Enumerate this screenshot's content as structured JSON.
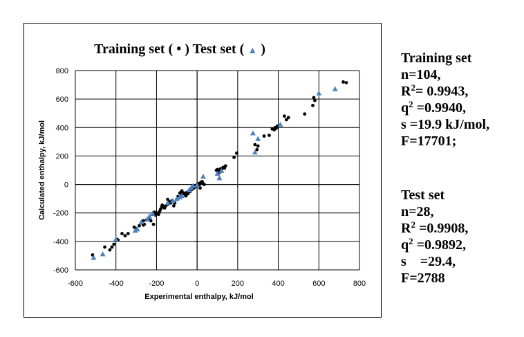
{
  "chart_data": {
    "type": "scatter",
    "title_parts": [
      "Training set ( ",
      "•",
      " )   Test set ( ",
      "▲",
      " )"
    ],
    "xlabel": "Experimental enthalpy,  kJ/mol",
    "ylabel": "Calculated enthalpy,  kJ/mol",
    "xlim": [
      -600,
      800
    ],
    "ylim": [
      -600,
      800
    ],
    "xticks": [
      -600,
      -400,
      -200,
      0,
      200,
      400,
      600,
      800
    ],
    "yticks": [
      -600,
      -400,
      -200,
      0,
      200,
      400,
      600,
      800
    ],
    "grid": true,
    "series": [
      {
        "name": "Training set",
        "marker": "dot",
        "color": "#000000",
        "points": [
          [
            -515,
            -495
          ],
          [
            -455,
            -440
          ],
          [
            -430,
            -460
          ],
          [
            -420,
            -440
          ],
          [
            -410,
            -420
          ],
          [
            -390,
            -390
          ],
          [
            -370,
            -345
          ],
          [
            -355,
            -360
          ],
          [
            -340,
            -345
          ],
          [
            -310,
            -300
          ],
          [
            -285,
            -290
          ],
          [
            -275,
            -270
          ],
          [
            -265,
            -255
          ],
          [
            -260,
            -280
          ],
          [
            -250,
            -250
          ],
          [
            -235,
            -230
          ],
          [
            -228,
            -255
          ],
          [
            -220,
            -210
          ],
          [
            -215,
            -280
          ],
          [
            -210,
            -195
          ],
          [
            -200,
            -200
          ],
          [
            -190,
            -210
          ],
          [
            -180,
            -175
          ],
          [
            -175,
            -160
          ],
          [
            -172,
            -145
          ],
          [
            -165,
            -160
          ],
          [
            -160,
            -165
          ],
          [
            -155,
            -150
          ],
          [
            -145,
            -140
          ],
          [
            -140,
            -120
          ],
          [
            -130,
            -130
          ],
          [
            -120,
            -120
          ],
          [
            -115,
            -150
          ],
          [
            -110,
            -130
          ],
          [
            -100,
            -105
          ],
          [
            -95,
            -85
          ],
          [
            -90,
            -90
          ],
          [
            -85,
            -60
          ],
          [
            -78,
            -80
          ],
          [
            -72,
            -65
          ],
          [
            -65,
            -60
          ],
          [
            -60,
            -70
          ],
          [
            -55,
            -80
          ],
          [
            -50,
            -55
          ],
          [
            -45,
            -65
          ],
          [
            -40,
            -45
          ],
          [
            -35,
            -50
          ],
          [
            -30,
            -30
          ],
          [
            -25,
            -35
          ],
          [
            -20,
            -20
          ],
          [
            -15,
            -25
          ],
          [
            -10,
            -10
          ],
          [
            -5,
            -15
          ],
          [
            0,
            0
          ],
          [
            5,
            5
          ],
          [
            10,
            -5
          ],
          [
            15,
            10
          ],
          [
            20,
            15
          ],
          [
            25,
            20
          ],
          [
            30,
            5
          ],
          [
            35,
            0
          ],
          [
            -75,
            -45
          ],
          [
            -125,
            -115
          ],
          [
            -145,
            -105
          ],
          [
            95,
            100
          ],
          [
            100,
            105
          ],
          [
            105,
            95
          ],
          [
            110,
            85
          ],
          [
            115,
            110
          ],
          [
            120,
            105
          ],
          [
            128,
            120
          ],
          [
            135,
            115
          ],
          [
            140,
            130
          ],
          [
            182,
            190
          ],
          [
            195,
            220
          ],
          [
            285,
            280
          ],
          [
            295,
            245
          ],
          [
            300,
            270
          ],
          [
            330,
            340
          ],
          [
            355,
            345
          ],
          [
            370,
            390
          ],
          [
            380,
            385
          ],
          [
            385,
            400
          ],
          [
            390,
            395
          ],
          [
            395,
            410
          ],
          [
            430,
            480
          ],
          [
            440,
            455
          ],
          [
            450,
            470
          ],
          [
            530,
            495
          ],
          [
            570,
            555
          ],
          [
            575,
            610
          ],
          [
            580,
            590
          ],
          [
            720,
            720
          ],
          [
            735,
            715
          ],
          [
            -395,
            -385
          ],
          [
            -300,
            -310
          ],
          [
            -265,
            -285
          ],
          [
            -240,
            -240
          ],
          [
            -205,
            -215
          ],
          [
            -185,
            -190
          ],
          [
            -95,
            -100
          ],
          [
            -80,
            -55
          ],
          [
            -45,
            -55
          ],
          [
            15,
            -25
          ]
        ]
      },
      {
        "name": "Test set",
        "marker": "triangle",
        "color": "#4f81bd",
        "points": [
          [
            -510,
            -515
          ],
          [
            -465,
            -490
          ],
          [
            -400,
            -385
          ],
          [
            -305,
            -325
          ],
          [
            -295,
            -315
          ],
          [
            -275,
            -265
          ],
          [
            -245,
            -245
          ],
          [
            -235,
            -225
          ],
          [
            -220,
            -205
          ],
          [
            -145,
            -130
          ],
          [
            -120,
            -115
          ],
          [
            -100,
            -100
          ],
          [
            -85,
            -90
          ],
          [
            -75,
            -80
          ],
          [
            -40,
            -40
          ],
          [
            -30,
            -25
          ],
          [
            -20,
            -10
          ],
          [
            0,
            -5
          ],
          [
            30,
            55
          ],
          [
            100,
            75
          ],
          [
            110,
            45
          ],
          [
            120,
            95
          ],
          [
            275,
            360
          ],
          [
            285,
            225
          ],
          [
            300,
            320
          ],
          [
            410,
            420
          ],
          [
            600,
            640
          ],
          [
            680,
            670
          ]
        ]
      }
    ]
  },
  "stats": {
    "training": {
      "heading": "Training set",
      "n": "n=104,",
      "r2_a": "R",
      "r2_sup": "2",
      "r2_b": "= 0.9943,",
      "q2_a": "q",
      "q2_sup": "2",
      "q2_b": " =0.9940,",
      "s": "s =19.9 kJ/mol,",
      "f": "F=17701;"
    },
    "test": {
      "heading": "Test set",
      "n": "n=28,",
      "r2_a": "R",
      "r2_sup": "2",
      "r2_b": " =0.9908,",
      "q2_a": "q",
      "q2_sup": "2",
      "q2_b": " =0.9892,",
      "s": "s    =29.4,",
      "f": "F=2788"
    }
  }
}
